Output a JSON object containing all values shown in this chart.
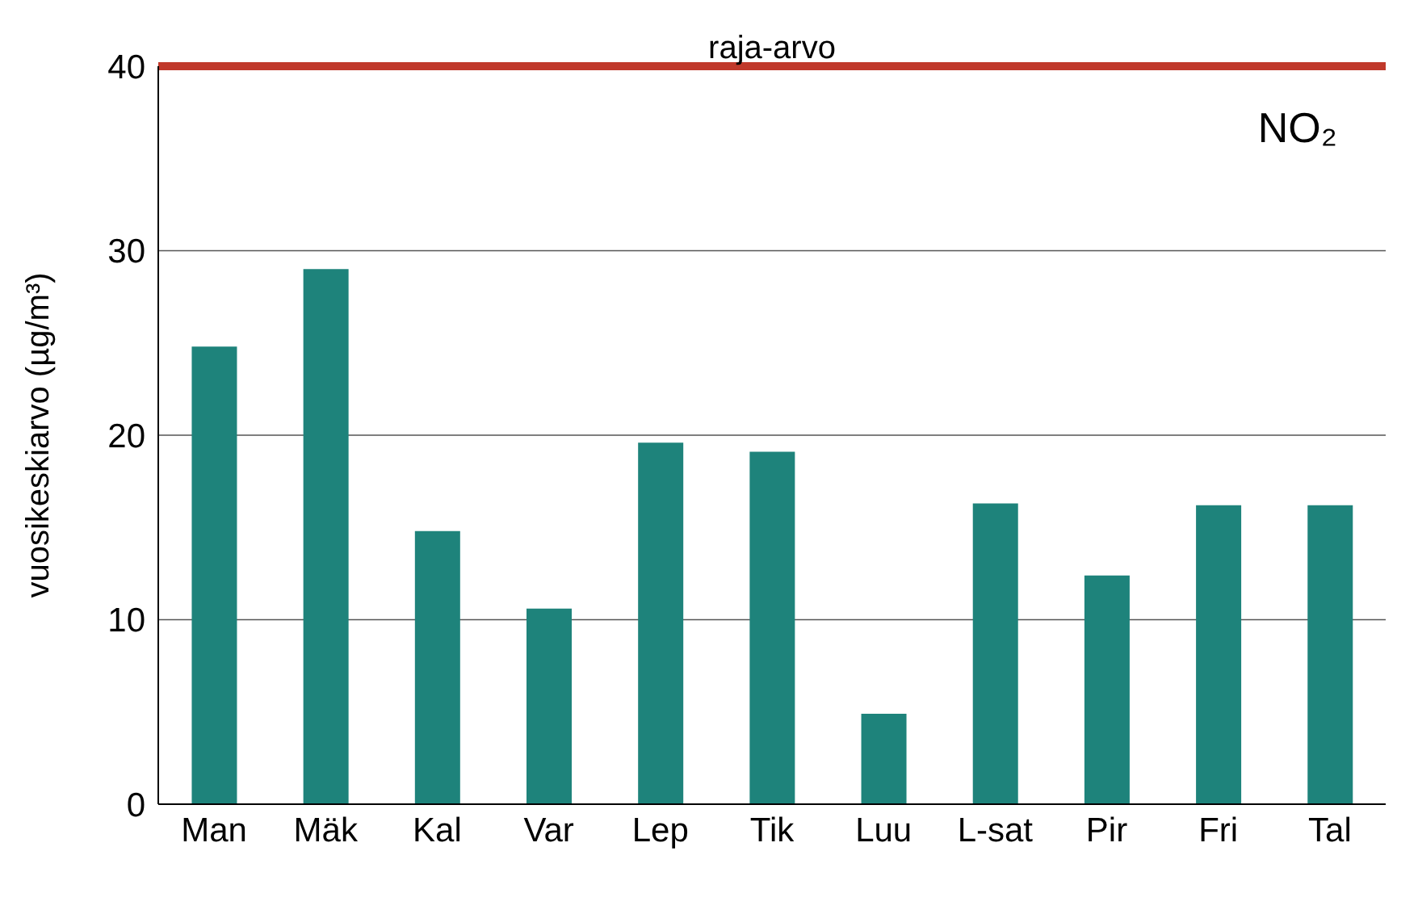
{
  "chart_data": {
    "type": "bar",
    "ylabel": "vuosikeskiarvo (µg/m³)",
    "categories": [
      "Man",
      "Mäk",
      "Kal",
      "Var",
      "Lep",
      "Tik",
      "Luu",
      "L-sat",
      "Pir",
      "Fri",
      "Tal"
    ],
    "values": [
      24.8,
      29.0,
      14.8,
      10.6,
      19.6,
      19.1,
      4.9,
      16.3,
      12.4,
      16.2,
      16.2
    ],
    "color": "#1e837b",
    "ylim": [
      0,
      40
    ],
    "yticks": [
      0,
      10,
      20,
      30,
      40
    ],
    "grid": "y",
    "ref_lines": [
      {
        "axis": "y",
        "value": 40,
        "label": "raja-arvo",
        "color": "#c0392b"
      }
    ],
    "annotations": [
      "NO₂"
    ]
  }
}
